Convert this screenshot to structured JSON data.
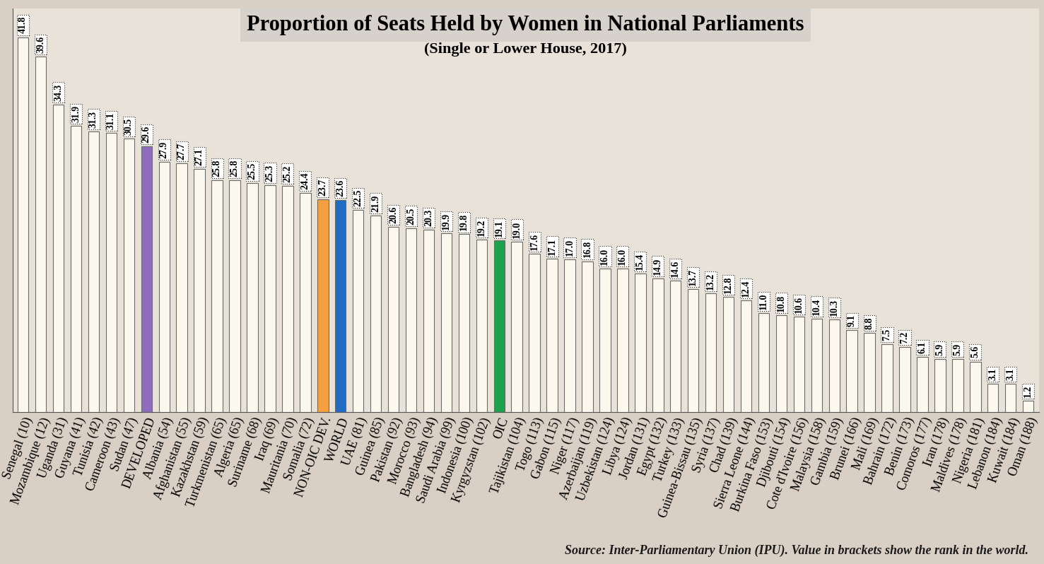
{
  "chart_data": {
    "type": "bar",
    "title": "Proportion of Seats Held by Women in National Parliaments",
    "subtitle": "(Single or Lower House, 2017)",
    "source": "Source: Inter-Parliamentary Union (IPU). Value in brackets show the rank in the world.",
    "categories": [
      "Senegal (10)",
      "Mozambique (12)",
      "Uganda (31)",
      "Guyana (41)",
      "Tunisia (42)",
      "Cameroon (43)",
      "Sudan (47)",
      "DEVELOPED",
      "Albania (54)",
      "Afghanistan (55)",
      "Kazakhstan (59)",
      "Turkmenistan (65)",
      "Algeria (65)",
      "Suriname (68)",
      "Iraq (69)",
      "Mauritania (70)",
      "Somalia (72)",
      "NON-OIC DEV.",
      "WORLD",
      "UAE (81)",
      "Guinea (85)",
      "Pakistan (92)",
      "Morocco (93)",
      "Bangladesh (94)",
      "Saudi Arabia (99)",
      "Indonesia (100)",
      "Kyrgyzstan (102)",
      "OIC",
      "Tajikistan (104)",
      "Togo (113)",
      "Gabon (115)",
      "Niger (117)",
      "Azerbaijan (119)",
      "Uzbekistan (124)",
      "Libya (124)",
      "Jordan (131)",
      "Egypt (132)",
      "Turkey (133)",
      "Guinea-Bissau (135)",
      "Syria (137)",
      "Chad (139)",
      "Sierra Leone (144)",
      "Burkina Faso (153)",
      "Djibouti (154)",
      "Cote d'Ivoire (156)",
      "Malaysia (158)",
      "Gambia (159)",
      "Brunei (166)",
      "Mali (169)",
      "Bahrain (172)",
      "Benin (173)",
      "Comoros (177)",
      "Iran (178)",
      "Maldives (178)",
      "Nigeria (181)",
      "Lebanon (184)",
      "Kuwait (184)",
      "Oman (188)"
    ],
    "values": [
      41.8,
      39.6,
      34.3,
      31.9,
      31.3,
      31.1,
      30.5,
      29.6,
      27.9,
      27.7,
      27.1,
      25.8,
      25.8,
      25.5,
      25.3,
      25.2,
      24.4,
      23.7,
      23.6,
      22.5,
      21.9,
      20.6,
      20.5,
      20.3,
      19.9,
      19.8,
      19.2,
      19.1,
      19.0,
      17.6,
      17.1,
      17.0,
      16.8,
      16.0,
      16.0,
      15.4,
      14.9,
      14.6,
      13.7,
      13.2,
      12.8,
      12.4,
      11.0,
      10.8,
      10.6,
      10.4,
      10.3,
      9.1,
      8.8,
      7.5,
      7.2,
      6.1,
      5.9,
      5.9,
      5.6,
      3.1,
      3.1,
      1.2
    ],
    "colors": [
      "#fbf8ee",
      "#fbf8ee",
      "#fbf8ee",
      "#fbf8ee",
      "#fbf8ee",
      "#fbf8ee",
      "#fbf8ee",
      "#8e6bbf",
      "#fbf8ee",
      "#fbf8ee",
      "#fbf8ee",
      "#fbf8ee",
      "#fbf8ee",
      "#fbf8ee",
      "#fbf8ee",
      "#fbf8ee",
      "#fbf8ee",
      "#f5a040",
      "#1f6bc6",
      "#fbf8ee",
      "#fbf8ee",
      "#fbf8ee",
      "#fbf8ee",
      "#fbf8ee",
      "#fbf8ee",
      "#fbf8ee",
      "#fbf8ee",
      "#1aa34a",
      "#fbf8ee",
      "#fbf8ee",
      "#fbf8ee",
      "#fbf8ee",
      "#fbf8ee",
      "#fbf8ee",
      "#fbf8ee",
      "#fbf8ee",
      "#fbf8ee",
      "#fbf8ee",
      "#fbf8ee",
      "#fbf8ee",
      "#fbf8ee",
      "#fbf8ee",
      "#fbf8ee",
      "#fbf8ee",
      "#fbf8ee",
      "#fbf8ee",
      "#fbf8ee",
      "#fbf8ee",
      "#fbf8ee",
      "#fbf8ee",
      "#fbf8ee",
      "#fbf8ee",
      "#fbf8ee",
      "#fbf8ee",
      "#fbf8ee",
      "#fbf8ee",
      "#fbf8ee",
      "#fbf8ee"
    ],
    "ylim": [
      0,
      45
    ],
    "data_labels": true,
    "tick_labels": "x",
    "grid": false
  }
}
